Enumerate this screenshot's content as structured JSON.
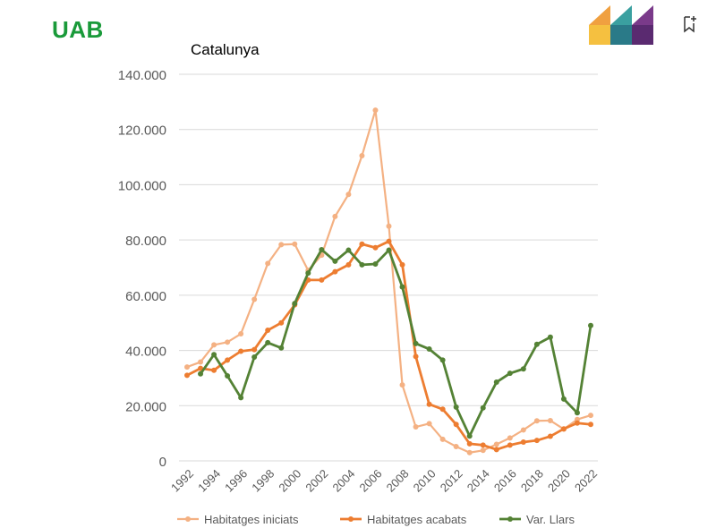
{
  "header": {
    "logo_text": "UAB",
    "brand_mark": "colorful-parallelogram-logo",
    "bookmark_icon": "bookmark-add-icon"
  },
  "chart_data": {
    "type": "line",
    "title": "Catalunya",
    "xlabel": "",
    "ylabel": "",
    "x": [
      1992,
      1993,
      1994,
      1995,
      1996,
      1997,
      1998,
      1999,
      2000,
      2001,
      2002,
      2003,
      2004,
      2005,
      2006,
      2007,
      2008,
      2009,
      2010,
      2011,
      2012,
      2013,
      2014,
      2015,
      2016,
      2017,
      2018,
      2019,
      2020,
      2021,
      2022
    ],
    "x_tick_labels": [
      "1992",
      "1994",
      "1996",
      "1998",
      "2000",
      "2002",
      "2004",
      "2006",
      "2008",
      "2010",
      "2012",
      "2014",
      "2016",
      "2018",
      "2020",
      "2022"
    ],
    "y_tick_labels": [
      "0",
      "20.000",
      "40.000",
      "60.000",
      "80.000",
      "100.000",
      "120.000",
      "140.000"
    ],
    "ylim": [
      0,
      140000
    ],
    "grid": "horizontal",
    "legend_position": "bottom",
    "series": [
      {
        "name": "Habitatges iniciats",
        "color": "#F4B183",
        "values": [
          34000,
          35800,
          42000,
          43000,
          46000,
          58500,
          71500,
          78300,
          78500,
          69000,
          74500,
          88500,
          96500,
          110500,
          127000,
          85000,
          27500,
          12300,
          13500,
          7800,
          5200,
          3000,
          3800,
          6000,
          8300,
          11200,
          14500,
          14600,
          11500,
          15000,
          16500
        ]
      },
      {
        "name": "Habitatges acabats",
        "color": "#ED7D31",
        "values": [
          31000,
          33500,
          32800,
          36500,
          39700,
          40300,
          47300,
          50000,
          56500,
          65500,
          65500,
          68500,
          71000,
          78500,
          77200,
          79500,
          71000,
          37800,
          20500,
          18700,
          13200,
          6200,
          5700,
          4100,
          5700,
          6800,
          7400,
          8900,
          11600,
          13700,
          13200
        ]
      },
      {
        "name": "Var. Llars",
        "color": "#548235",
        "values": [
          null,
          31500,
          38500,
          30800,
          22900,
          37600,
          42800,
          40900,
          57000,
          68000,
          76500,
          72300,
          76300,
          71000,
          71300,
          76300,
          63000,
          42500,
          40500,
          36500,
          19500,
          9000,
          19200,
          28500,
          31700,
          33300,
          42200,
          44800,
          22400,
          17400,
          49000
        ]
      }
    ]
  }
}
